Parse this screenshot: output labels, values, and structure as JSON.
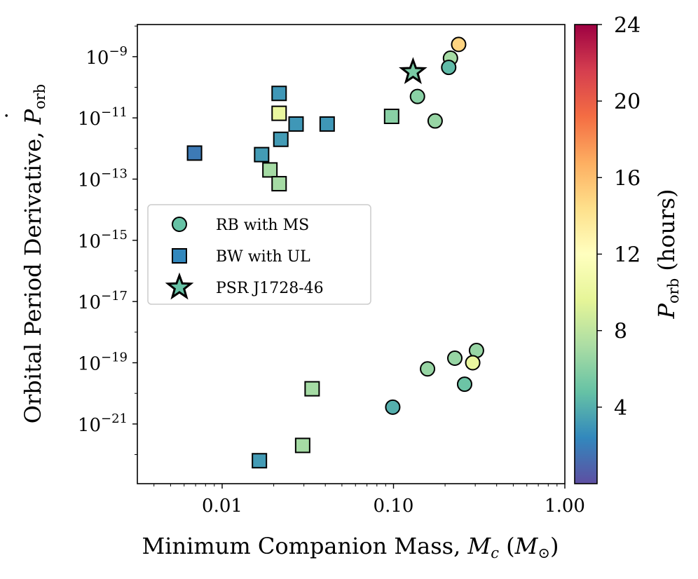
{
  "chart_data": {
    "type": "scatter",
    "xlabel": "Minimum Companion Mass, M_c (M_⊙)",
    "xlabel_parts": {
      "main": "Minimum Companion Mass, ",
      "var": "M",
      "sub": "c",
      "paren_open": " (",
      "unit": "M",
      "unit_sub": "⊙",
      "paren_close": ")"
    },
    "ylabel_parts": {
      "main": "Orbital Period Derivative, ",
      "var": "P",
      "dot": "˙",
      "sub": "orb"
    },
    "colorbar_label_parts": {
      "var": "P",
      "sub": "orb",
      "rest": " (hours)"
    },
    "x_scale": "log",
    "y_scale": "log",
    "xlim": [
      0.0032,
      1.0
    ],
    "ylim_log10": [
      -22.95,
      -7.95
    ],
    "x_ticks": [
      {
        "value": 0.01,
        "label": "0.01"
      },
      {
        "value": 0.1,
        "label": "0.10"
      },
      {
        "value": 1.0,
        "label": "1.00"
      }
    ],
    "y_ticks": [
      {
        "exp": -9,
        "base": "10",
        "sup": "−9"
      },
      {
        "exp": -11,
        "base": "10",
        "sup": "−11"
      },
      {
        "exp": -13,
        "base": "10",
        "sup": "−13"
      },
      {
        "exp": -15,
        "base": "10",
        "sup": "−15"
      },
      {
        "exp": -17,
        "base": "10",
        "sup": "−17"
      },
      {
        "exp": -19,
        "base": "10",
        "sup": "−19"
      },
      {
        "exp": -21,
        "base": "10",
        "sup": "−21"
      }
    ],
    "colorbar": {
      "colormap": "Spectral_r",
      "range": [
        0,
        24
      ],
      "ticks": [
        {
          "value": 4,
          "label": "4"
        },
        {
          "value": 8,
          "label": "8"
        },
        {
          "value": 12,
          "label": "12"
        },
        {
          "value": 16,
          "label": "16"
        },
        {
          "value": 20,
          "label": "20"
        },
        {
          "value": 24,
          "label": "24"
        }
      ],
      "stops": [
        "#5e4fa2",
        "#3288bd",
        "#66c2a5",
        "#abdda4",
        "#e6f598",
        "#ffffbf",
        "#fee08b",
        "#fdae61",
        "#f46d43",
        "#d53e4f",
        "#9e0142"
      ]
    },
    "legend": {
      "position": "center-left",
      "entries": [
        {
          "label": "RB with MS",
          "marker": "circle",
          "color": "#66c2a5"
        },
        {
          "label": "BW with UL",
          "marker": "square",
          "color": "#3288bd"
        },
        {
          "label": "PSR J1728-46",
          "marker": "star",
          "color": "#66c2a5"
        }
      ]
    },
    "series": [
      {
        "name": "RB with MS",
        "marker": "circle",
        "points": [
          {
            "x": 0.24,
            "log10_y": -8.6,
            "period_hours": 15.0
          },
          {
            "x": 0.215,
            "log10_y": -9.05,
            "period_hours": 7.0
          },
          {
            "x": 0.21,
            "log10_y": -9.35,
            "period_hours": 4.5
          },
          {
            "x": 0.138,
            "log10_y": -10.3,
            "period_hours": 6.0
          },
          {
            "x": 0.175,
            "log10_y": -11.1,
            "period_hours": 6.5
          },
          {
            "x": 0.305,
            "log10_y": -18.6,
            "period_hours": 6.5
          },
          {
            "x": 0.228,
            "log10_y": -18.85,
            "period_hours": 6.5
          },
          {
            "x": 0.29,
            "log10_y": -19.0,
            "period_hours": 10.0
          },
          {
            "x": 0.158,
            "log10_y": -19.2,
            "period_hours": 6.5
          },
          {
            "x": 0.26,
            "log10_y": -19.7,
            "period_hours": 5.0
          },
          {
            "x": 0.099,
            "log10_y": -20.45,
            "period_hours": 4.0
          }
        ]
      },
      {
        "name": "BW with UL",
        "marker": "square",
        "points": [
          {
            "x": 0.0215,
            "log10_y": -10.2,
            "period_hours": 3.0
          },
          {
            "x": 0.0215,
            "log10_y": -10.85,
            "period_hours": 10.0
          },
          {
            "x": 0.027,
            "log10_y": -11.2,
            "period_hours": 3.0
          },
          {
            "x": 0.041,
            "log10_y": -11.2,
            "period_hours": 3.0
          },
          {
            "x": 0.0975,
            "log10_y": -10.95,
            "period_hours": 6.0
          },
          {
            "x": 0.022,
            "log10_y": -11.7,
            "period_hours": 3.2
          },
          {
            "x": 0.0069,
            "log10_y": -12.15,
            "period_hours": 1.8
          },
          {
            "x": 0.017,
            "log10_y": -12.2,
            "period_hours": 3.2
          },
          {
            "x": 0.019,
            "log10_y": -12.7,
            "period_hours": 7.0
          },
          {
            "x": 0.0215,
            "log10_y": -13.15,
            "period_hours": 7.0
          },
          {
            "x": 0.0335,
            "log10_y": -19.85,
            "period_hours": 7.0
          },
          {
            "x": 0.0295,
            "log10_y": -21.7,
            "period_hours": 7.0
          },
          {
            "x": 0.0165,
            "log10_y": -22.2,
            "period_hours": 3.2
          }
        ]
      },
      {
        "name": "PSR J1728-46",
        "marker": "star",
        "points": [
          {
            "x": 0.13,
            "log10_y": -9.5,
            "period_hours": 5.5
          }
        ]
      }
    ]
  }
}
